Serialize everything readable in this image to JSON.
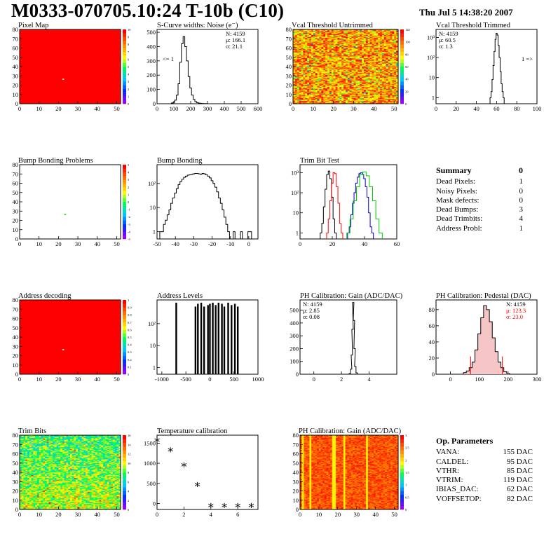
{
  "header": {
    "title": "M0333-070705.10:24 T-10b (C10)",
    "date": "Thu Jul  5 14:38:20 2007"
  },
  "summary": {
    "title": "Summary",
    "value": "0",
    "items": [
      {
        "label": "Dead Pixels:",
        "value": "1"
      },
      {
        "label": "Noisy Pixels:",
        "value": "0"
      },
      {
        "label": "Mask defects:",
        "value": "0"
      },
      {
        "label": "Dead Bumps:",
        "value": "3"
      },
      {
        "label": "Dead Trimbits:",
        "value": "4"
      },
      {
        "label": "Address Probl:",
        "value": "1"
      }
    ]
  },
  "op_params": {
    "title": "Op. Parameters",
    "items": [
      {
        "label": "VANA:",
        "value": "155 DAC"
      },
      {
        "label": "CALDEL:",
        "value": "95 DAC"
      },
      {
        "label": "VTHR:",
        "value": "85 DAC"
      },
      {
        "label": "VTRIM:",
        "value": "119 DAC"
      },
      {
        "label": "IBIAS_DAC:",
        "value": "62 DAC"
      },
      {
        "label": "VOFFSETOP:",
        "value": "82 DAC"
      }
    ]
  },
  "colors": {
    "red": "#ff0000",
    "blue": "#0000cc",
    "green": "#00cc00",
    "black": "#000000"
  },
  "chart_data": [
    {
      "id": "pixel-map",
      "type": "heatmap",
      "title": "Pixel Map",
      "pattern": "uniform",
      "dead_cells": [
        [
          22,
          27
        ]
      ],
      "xticks": [
        "0",
        "10",
        "20",
        "30",
        "40",
        "50"
      ],
      "yticks": [
        "0",
        "10",
        "20",
        "30",
        "40",
        "50",
        "60",
        "70",
        "80"
      ],
      "zticks": [
        "0",
        "1",
        "2",
        "3",
        "4",
        "5",
        "6",
        "7",
        "8",
        "9",
        "10"
      ],
      "xlim": [
        0,
        52
      ],
      "ylim": [
        0,
        80
      ]
    },
    {
      "id": "scurve-widths",
      "type": "line",
      "title": "S-Curve widths: Noise (e⁻)",
      "stats": [
        "N: 4159",
        "μ: 166.1",
        "σ: 21.1"
      ],
      "xticks": [
        "0",
        "100",
        "200",
        "300",
        "400",
        "500",
        "600"
      ],
      "yticks": [
        "0",
        "100",
        "200",
        "300",
        "400",
        "500"
      ],
      "xlim": [
        0,
        600
      ],
      "ylim": [
        0,
        520
      ],
      "underflow": "<= 1",
      "x": [
        80,
        90,
        100,
        110,
        120,
        130,
        140,
        150,
        160,
        170,
        180,
        190,
        200,
        210,
        220,
        230,
        240,
        250,
        260,
        270,
        280,
        290,
        300
      ],
      "y": [
        0,
        5,
        10,
        25,
        60,
        140,
        290,
        420,
        470,
        400,
        300,
        190,
        110,
        60,
        30,
        15,
        8,
        4,
        3,
        2,
        1,
        1,
        0
      ]
    },
    {
      "id": "vcal-untrimmed",
      "type": "heatmap",
      "title": "Vcal Threshold Untrimmed",
      "pattern": "noisy-warm",
      "xticks": [
        "0",
        "10",
        "20",
        "30",
        "40",
        "50"
      ],
      "yticks": [
        "0",
        "10",
        "20",
        "30",
        "40",
        "50",
        "60",
        "70",
        "80"
      ],
      "zticks": [
        "0",
        "20",
        "40",
        "60",
        "80",
        "100",
        "120"
      ],
      "xlim": [
        0,
        52
      ],
      "ylim": [
        0,
        80
      ]
    },
    {
      "id": "vcal-trimmed",
      "type": "line",
      "title": "Vcal Threshold Trimmed",
      "stats": [
        "N: 4159",
        "μ: 60.5",
        "σ: 1.3"
      ],
      "log": true,
      "overflow": "1 =>",
      "xticks": [
        "0",
        "20",
        "40",
        "60",
        "80",
        "100"
      ],
      "yticks": [
        "1",
        "10",
        "10²",
        "10³"
      ],
      "xlim": [
        0,
        100
      ],
      "ylim": [
        0.5,
        2500
      ],
      "x": [
        54,
        55,
        56,
        57,
        58,
        59,
        60,
        61,
        62,
        63,
        64,
        65,
        66,
        67
      ],
      "y": [
        1,
        2,
        8,
        40,
        200,
        800,
        1600,
        1300,
        400,
        100,
        20,
        5,
        2,
        1
      ]
    },
    {
      "id": "bump-bonding-problems",
      "type": "heatmap",
      "title": "Bump Bonding Problems",
      "pattern": "empty",
      "dead_cells": [
        [
          23,
          27
        ]
      ],
      "xticks": [
        "0",
        "10",
        "20",
        "30",
        "40",
        "50"
      ],
      "yticks": [
        "0",
        "10",
        "20",
        "30",
        "40",
        "50",
        "60",
        "70",
        "80"
      ],
      "zticks": [
        "-5",
        "-4",
        "-3",
        "-2",
        "-1",
        "0",
        "1",
        "2",
        "3",
        "4",
        "5"
      ],
      "xlim": [
        0,
        52
      ],
      "ylim": [
        0,
        80
      ]
    },
    {
      "id": "bump-bonding",
      "type": "line",
      "title": "Bump Bonding",
      "log": true,
      "xticks": [
        "-50",
        "-40",
        "-30",
        "-20",
        "-10",
        "0"
      ],
      "yticks": [
        "1",
        "10",
        "10²"
      ],
      "xlim": [
        -50,
        5
      ],
      "ylim": [
        0.5,
        600
      ],
      "x": [
        -48,
        -47,
        -46,
        -45,
        -44,
        -43,
        -42,
        -41,
        -40,
        -39,
        -38,
        -37,
        -36,
        -35,
        -34,
        -33,
        -32,
        -31,
        -30,
        -29,
        -28,
        -27,
        -26,
        -25,
        -24,
        -23,
        -22,
        -21,
        -20,
        -19,
        -18,
        -17,
        -16,
        -15,
        -14,
        -13,
        -12,
        -11,
        -10,
        -9,
        -8,
        -7,
        -6,
        -5,
        -4,
        -3,
        -2,
        -1,
        0,
        1
      ],
      "y": [
        1,
        1,
        2,
        3,
        5,
        8,
        15,
        25,
        40,
        60,
        90,
        120,
        150,
        180,
        200,
        220,
        230,
        240,
        250,
        260,
        260,
        250,
        240,
        260,
        250,
        230,
        200,
        170,
        130,
        100,
        70,
        45,
        25,
        15,
        8,
        4,
        2,
        1,
        0,
        0,
        1,
        0,
        0,
        0,
        1,
        0,
        0,
        0,
        1,
        1
      ]
    },
    {
      "id": "trim-bit-test",
      "type": "line",
      "title": "Trim Bit Test",
      "log": true,
      "xticks": [
        "0",
        "20",
        "40",
        "60"
      ],
      "yticks": [
        "1",
        "10",
        "10²",
        "10³"
      ],
      "xlim": [
        0,
        60
      ],
      "ylim": [
        0.5,
        2500
      ],
      "series": [
        {
          "color": "#000000",
          "x": [
            13,
            14,
            15,
            16,
            17,
            18,
            19,
            20,
            21,
            22
          ],
          "y": [
            1,
            3,
            20,
            150,
            800,
            1200,
            500,
            60,
            5,
            1
          ]
        },
        {
          "color": "#ff0000",
          "x": [
            17,
            18,
            19,
            20,
            21,
            22,
            23,
            24,
            25,
            26
          ],
          "y": [
            1,
            5,
            40,
            300,
            1000,
            900,
            200,
            30,
            3,
            1
          ]
        },
        {
          "color": "#0000cc",
          "x": [
            30,
            31,
            32,
            33,
            34,
            35,
            36,
            37,
            38,
            39,
            40,
            41,
            42,
            43,
            44,
            45
          ],
          "y": [
            1,
            2,
            8,
            30,
            100,
            300,
            600,
            900,
            1000,
            800,
            500,
            200,
            60,
            10,
            2,
            1
          ]
        },
        {
          "color": "#00cc00",
          "x": [
            30,
            32,
            34,
            36,
            38,
            40,
            42,
            44,
            46,
            48,
            50
          ],
          "y": [
            1,
            5,
            40,
            200,
            800,
            1100,
            700,
            200,
            40,
            5,
            1
          ]
        }
      ]
    },
    {
      "id": "address-decoding",
      "type": "heatmap",
      "title": "Address decoding",
      "pattern": "uniform",
      "dead_cells": [
        [
          22,
          27
        ]
      ],
      "xticks": [
        "0",
        "10",
        "20",
        "30",
        "40",
        "50"
      ],
      "yticks": [
        "0",
        "10",
        "20",
        "30",
        "40",
        "50",
        "60",
        "70",
        "80"
      ],
      "zticks": [
        "0",
        "0.1",
        "0.2",
        "0.3",
        "0.4",
        "0.5",
        "0.6",
        "0.7",
        "0.8",
        "0.9",
        "1"
      ],
      "xlim": [
        0,
        52
      ],
      "ylim": [
        0,
        80
      ]
    },
    {
      "id": "address-levels",
      "type": "bar",
      "title": "Address Levels",
      "log": true,
      "xticks": [
        "-1000",
        "-500",
        "0",
        "500",
        "1000"
      ],
      "yticks": [
        "1",
        "10",
        "10²"
      ],
      "xlim": [
        -1100,
        1000
      ],
      "ylim": [
        0.5,
        1200
      ],
      "x": [
        -700,
        -300,
        -250,
        -180,
        -120,
        -40,
        0,
        60,
        120,
        180,
        250,
        300,
        380,
        450,
        520,
        580
      ],
      "y": [
        900,
        600,
        800,
        900,
        600,
        700,
        800,
        900,
        700,
        900,
        800,
        600,
        900,
        700,
        800,
        600
      ]
    },
    {
      "id": "ph-gain",
      "type": "line",
      "title": "PH Calibration: Gain (ADC/DAC)",
      "stats": [
        "N: 4159",
        "μ: 2.85",
        "σ: 0.08"
      ],
      "xticks": [
        "0",
        "2",
        "4"
      ],
      "yticks": [
        "0",
        "100",
        "200",
        "300",
        "400",
        "500"
      ],
      "xlim": [
        -1,
        6
      ],
      "ylim": [
        0,
        580
      ],
      "x": [
        2.5,
        2.6,
        2.7,
        2.75,
        2.8,
        2.85,
        2.9,
        2.95,
        3.0,
        3.1,
        3.2
      ],
      "y": [
        0,
        5,
        40,
        150,
        350,
        560,
        420,
        200,
        60,
        10,
        0
      ]
    },
    {
      "id": "ph-pedestal",
      "type": "line",
      "title": "PH Calibration: Pedestal (DAC)",
      "stats": [
        "N: 4159",
        "μ: 123.3",
        "σ: 23.0"
      ],
      "xticks": [
        "0",
        "100",
        "200",
        "300"
      ],
      "yticks": [
        "0",
        "20",
        "40",
        "60",
        "80"
      ],
      "xlim": [
        -50,
        300
      ],
      "ylim": [
        0,
        92
      ],
      "x": [
        50,
        60,
        70,
        80,
        90,
        100,
        110,
        120,
        130,
        140,
        150,
        160,
        170,
        180,
        190,
        200,
        210
      ],
      "y": [
        2,
        4,
        8,
        15,
        30,
        50,
        70,
        85,
        80,
        65,
        45,
        28,
        15,
        8,
        3,
        1,
        0
      ],
      "markers": [
        {
          "x": 70,
          "y": 22,
          "color": "#ff0000"
        },
        {
          "x": 180,
          "y": 22,
          "color": "#ff0000"
        }
      ]
    },
    {
      "id": "trim-bits",
      "type": "heatmap",
      "title": "Trim Bits",
      "pattern": "noisy-cool",
      "xticks": [
        "0",
        "10",
        "20",
        "30",
        "40",
        "50"
      ],
      "yticks": [
        "0",
        "10",
        "20",
        "30",
        "40",
        "50",
        "60",
        "70",
        "80"
      ],
      "zticks": [
        "0",
        "2",
        "4",
        "6",
        "8",
        "10",
        "12",
        "14",
        "16"
      ],
      "xlim": [
        0,
        52
      ],
      "ylim": [
        0,
        80
      ]
    },
    {
      "id": "temperature-calibration",
      "type": "scatter",
      "title": "Temperature calibration",
      "xticks": [
        "0",
        "2",
        "4",
        "6"
      ],
      "yticks": [
        "0",
        "500",
        "1000",
        "1500"
      ],
      "xlim": [
        0,
        7.5
      ],
      "ylim": [
        -150,
        1700
      ],
      "x": [
        0,
        1,
        2,
        3,
        4,
        5,
        6,
        7
      ],
      "y": [
        1580,
        1330,
        960,
        470,
        -50,
        -50,
        -50,
        -50
      ]
    },
    {
      "id": "ph-gain-map",
      "type": "heatmap",
      "title": "PH Calibration: Gain (ADC/DAC)",
      "pattern": "column-warm",
      "xticks": [
        "0",
        "10",
        "20",
        "30",
        "40",
        "50"
      ],
      "yticks": [
        "0",
        "10",
        "20",
        "30",
        "40",
        "50",
        "60",
        "70",
        "80"
      ],
      "zticks": [
        "0",
        "0.5",
        "1",
        "1.5",
        "2",
        "2.5",
        "3"
      ],
      "xlim": [
        0,
        52
      ],
      "ylim": [
        0,
        80
      ]
    }
  ]
}
